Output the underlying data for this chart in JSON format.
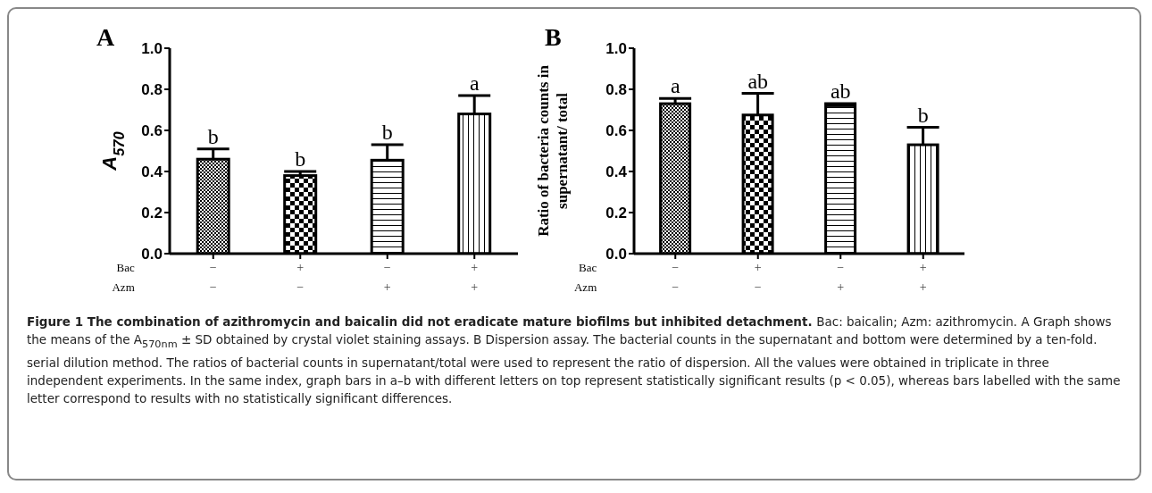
{
  "chart_data": [
    {
      "type": "bar",
      "title": "A",
      "ylabel": "A$_{570}$",
      "categories": [
        "−\n−",
        "+\n−",
        "−\n+",
        "+\n+"
      ],
      "series": [
        {
          "color": "#000000",
          "values": [
            0.46,
            0.38,
            0.455,
            0.68
          ],
          "errors": [
            [
              0.46,
              0.51
            ],
            [
              0.38,
              0.4
            ],
            [
              0.455,
              0.53
            ],
            [
              0.68,
              0.77
            ]
          ]
        }
      ],
      "ylim": [
        0,
        1
      ],
      "yticks": [
        {
          "value": 0,
          "label": "0.0"
        },
        {
          "value": 0.2,
          "label": "0.2"
        },
        {
          "value": 0.4,
          "label": "0.4"
        },
        {
          "value": 0.6,
          "label": "0.6"
        },
        {
          "value": 0.8,
          "label": "0.8"
        },
        {
          "value": 1,
          "label": "1.0"
        }
      ],
      "grid": false,
      "legend": false,
      "annotations": [
        "Bac",
        "Azm",
        {
          "text": "b",
          "x": "−\n−",
          "y": 0.51
        },
        {
          "text": "b",
          "x": "+\n−",
          "y": 0.4
        },
        {
          "text": "b",
          "x": "−\n+",
          "y": 0.53
        },
        {
          "text": "a",
          "x": "+\n+",
          "y": 0.77
        }
      ]
    },
    {
      "type": "bar",
      "title": "B",
      "ylabel": "Ratio of bacteria counts in\nsupernatant/ total",
      "categories": [
        "−\n−",
        "+\n−",
        "−\n+",
        "+\n+"
      ],
      "series": [
        {
          "color": "#000000",
          "values": [
            0.73,
            0.675,
            0.72,
            0.53
          ],
          "errors": [
            [
              0.73,
              0.755
            ],
            [
              0.675,
              0.78
            ],
            [
              0.72,
              0.73
            ],
            [
              0.53,
              0.615
            ]
          ]
        }
      ],
      "ylim": [
        0,
        1
      ],
      "yticks": [
        {
          "value": 0,
          "label": "0.0"
        },
        {
          "value": 0.2,
          "label": "0.2"
        },
        {
          "value": 0.4,
          "label": "0.4"
        },
        {
          "value": 0.6,
          "label": "0.6"
        },
        {
          "value": 0.8,
          "label": "0.8"
        },
        {
          "value": 1,
          "label": "1.0"
        }
      ],
      "grid": false,
      "legend": false,
      "annotations": [
        "Bac",
        "Azm",
        {
          "text": "a",
          "x": "−\n−",
          "y": 0.755
        },
        {
          "text": "ab",
          "x": "+\n−",
          "y": 0.78
        },
        {
          "text": "ab",
          "x": "−\n+",
          "y": 0.73
        },
        {
          "text": "b",
          "x": "+\n+",
          "y": 0.615
        }
      ]
    },
    {
      "type": "other",
      "title": "Figure 1  The combination of azithromycin and baicalin did not eradicate mature biofilms but inhibited detachment.",
      "annotations": [
        "Bac: baicalin; Azm: azithromycin. A Graph shows the means of the A$_{570nm}$ ± SD obtained by crystal violet staining assays. B Dispersion assay. The bacterial counts in the supernatant and bottom were determined by a ten-fold. serial dilution method. The ratios of bacterial counts in supernatant/total were used to represent the ratio of dispersion. All the values were obtained in triplicate in three independent experiments. In the same index, graph bars in a–b with different letters on top represent statistically significant results (p < 0.05), whereas bars labelled with the same letter correspond to results with no statistically significant differences."
      ]
    }
  ]
}
